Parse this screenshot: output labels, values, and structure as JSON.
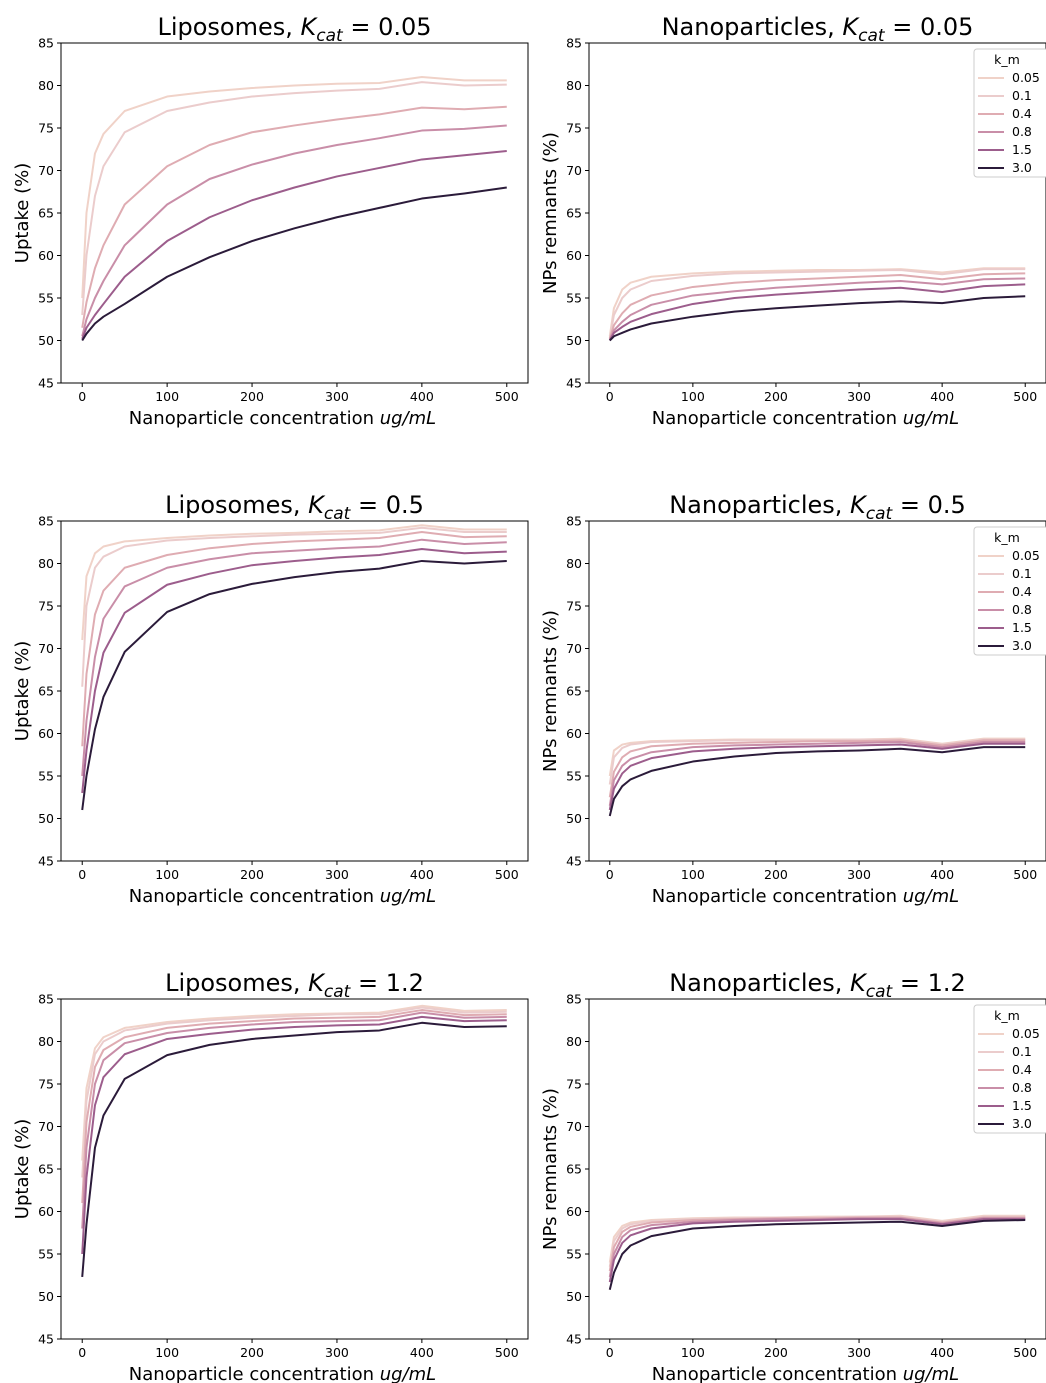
{
  "chart_data": [
    {
      "type": "line",
      "title_base": "Liposomes, ",
      "title_sym": "K",
      "title_sub": "cat",
      "title_rest": " = 0.05",
      "xlabel_base": "Nanoparticle concentration ",
      "xlabel_unit": "ug/mL",
      "ylabel": "Uptake (%)",
      "xlim": [
        -25,
        525
      ],
      "ylim": [
        45,
        85
      ],
      "xticks": [
        0,
        100,
        200,
        300,
        400,
        500
      ],
      "yticks": [
        45,
        50,
        55,
        60,
        65,
        70,
        75,
        80,
        85
      ],
      "grid": false,
      "x": [
        0,
        5,
        15,
        25,
        50,
        100,
        150,
        200,
        250,
        300,
        350,
        400,
        450,
        500
      ],
      "series": [
        {
          "name": "0.05",
          "values": [
            55.0,
            65.0,
            72.0,
            74.3,
            77.0,
            78.7,
            79.3,
            79.7,
            80.0,
            80.2,
            80.3,
            81.0,
            80.6,
            80.6
          ]
        },
        {
          "name": "0.1",
          "values": [
            53.0,
            60.0,
            67.0,
            70.5,
            74.5,
            77.0,
            78.0,
            78.7,
            79.1,
            79.4,
            79.6,
            80.4,
            80.0,
            80.1
          ]
        },
        {
          "name": "0.4",
          "values": [
            51.5,
            54.5,
            58.5,
            61.2,
            66.0,
            70.5,
            73.0,
            74.5,
            75.3,
            76.0,
            76.6,
            77.4,
            77.2,
            77.5
          ]
        },
        {
          "name": "0.8",
          "values": [
            50.5,
            52.5,
            55.0,
            57.0,
            61.2,
            66.0,
            69.0,
            70.7,
            72.0,
            73.0,
            73.8,
            74.7,
            74.9,
            75.3
          ]
        },
        {
          "name": "1.5",
          "values": [
            50.2,
            51.5,
            53.0,
            54.3,
            57.5,
            61.7,
            64.5,
            66.5,
            68.0,
            69.3,
            70.3,
            71.3,
            71.8,
            72.3
          ]
        },
        {
          "name": "3.0",
          "values": [
            50.0,
            50.8,
            52.0,
            52.8,
            54.3,
            57.5,
            59.8,
            61.7,
            63.2,
            64.5,
            65.6,
            66.7,
            67.3,
            68.0
          ]
        }
      ]
    },
    {
      "type": "line",
      "title_base": "Nanoparticles, ",
      "title_sym": "K",
      "title_sub": "cat",
      "title_rest": " = 0.05",
      "xlabel_base": "Nanoparticle concentration ",
      "xlabel_unit": "ug/mL",
      "ylabel": "NPs remnants (%)",
      "xlim": [
        -25,
        525
      ],
      "ylim": [
        45,
        85
      ],
      "xticks": [
        0,
        100,
        200,
        300,
        400,
        500
      ],
      "yticks": [
        45,
        50,
        55,
        60,
        65,
        70,
        75,
        80,
        85
      ],
      "grid": false,
      "legend": {
        "title": "k_m",
        "placement": "top-right"
      },
      "x": [
        0,
        5,
        15,
        25,
        50,
        100,
        150,
        200,
        250,
        300,
        350,
        400,
        450,
        500
      ],
      "series": [
        {
          "name": "0.05",
          "values": [
            50.5,
            53.8,
            56.0,
            56.8,
            57.5,
            57.9,
            58.1,
            58.2,
            58.3,
            58.3,
            58.4,
            58.0,
            58.5,
            58.5
          ]
        },
        {
          "name": "0.1",
          "values": [
            50.3,
            53.0,
            55.0,
            56.0,
            57.0,
            57.6,
            57.9,
            58.0,
            58.1,
            58.2,
            58.3,
            57.8,
            58.4,
            58.4
          ]
        },
        {
          "name": "0.4",
          "values": [
            50.2,
            51.8,
            53.2,
            54.2,
            55.3,
            56.3,
            56.8,
            57.1,
            57.3,
            57.5,
            57.7,
            57.2,
            57.8,
            57.9
          ]
        },
        {
          "name": "0.8",
          "values": [
            50.1,
            51.2,
            52.2,
            53.0,
            54.2,
            55.3,
            55.8,
            56.2,
            56.5,
            56.8,
            57.0,
            56.6,
            57.2,
            57.3
          ]
        },
        {
          "name": "1.5",
          "values": [
            50.0,
            50.9,
            51.6,
            52.2,
            53.1,
            54.3,
            55.0,
            55.4,
            55.7,
            56.0,
            56.2,
            55.7,
            56.4,
            56.6
          ]
        },
        {
          "name": "3.0",
          "values": [
            50.0,
            50.5,
            50.9,
            51.3,
            52.0,
            52.8,
            53.4,
            53.8,
            54.1,
            54.4,
            54.6,
            54.4,
            55.0,
            55.2
          ]
        }
      ]
    },
    {
      "type": "line",
      "title_base": "Liposomes, ",
      "title_sym": "K",
      "title_sub": "cat",
      "title_rest": " = 0.5",
      "xlabel_base": "Nanoparticle concentration ",
      "xlabel_unit": "ug/mL",
      "ylabel": "Uptake (%)",
      "xlim": [
        -25,
        525
      ],
      "ylim": [
        45,
        85
      ],
      "xticks": [
        0,
        100,
        200,
        300,
        400,
        500
      ],
      "yticks": [
        45,
        50,
        55,
        60,
        65,
        70,
        75,
        80,
        85
      ],
      "grid": false,
      "x": [
        0,
        5,
        15,
        25,
        50,
        100,
        150,
        200,
        250,
        300,
        350,
        400,
        450,
        500
      ],
      "series": [
        {
          "name": "0.05",
          "values": [
            71.0,
            78.5,
            81.2,
            82.0,
            82.6,
            83.0,
            83.3,
            83.5,
            83.6,
            83.8,
            83.9,
            84.5,
            84.0,
            84.0
          ]
        },
        {
          "name": "0.1",
          "values": [
            65.5,
            75.0,
            79.5,
            80.8,
            82.0,
            82.7,
            83.0,
            83.2,
            83.4,
            83.5,
            83.6,
            84.2,
            83.7,
            83.7
          ]
        },
        {
          "name": "0.4",
          "values": [
            58.5,
            67.0,
            74.0,
            76.8,
            79.5,
            81.0,
            81.8,
            82.3,
            82.6,
            82.8,
            83.0,
            83.7,
            83.1,
            83.2
          ]
        },
        {
          "name": "0.8",
          "values": [
            55.0,
            61.5,
            69.0,
            73.5,
            77.3,
            79.5,
            80.5,
            81.2,
            81.5,
            81.8,
            82.0,
            82.8,
            82.3,
            82.5
          ]
        },
        {
          "name": "1.5",
          "values": [
            53.0,
            58.0,
            65.0,
            69.5,
            74.2,
            77.5,
            78.8,
            79.8,
            80.3,
            80.7,
            81.0,
            81.7,
            81.2,
            81.4
          ]
        },
        {
          "name": "3.0",
          "values": [
            51.0,
            55.0,
            60.5,
            64.3,
            69.6,
            74.3,
            76.4,
            77.6,
            78.4,
            79.0,
            79.4,
            80.3,
            80.0,
            80.3
          ]
        }
      ]
    },
    {
      "type": "line",
      "title_base": "Nanoparticles, ",
      "title_sym": "K",
      "title_sub": "cat",
      "title_rest": " = 0.5",
      "xlabel_base": "Nanoparticle concentration ",
      "xlabel_unit": "ug/mL",
      "ylabel": "NPs remnants (%)",
      "xlim": [
        -25,
        525
      ],
      "ylim": [
        45,
        85
      ],
      "xticks": [
        0,
        100,
        200,
        300,
        400,
        500
      ],
      "yticks": [
        45,
        50,
        55,
        60,
        65,
        70,
        75,
        80,
        85
      ],
      "grid": false,
      "legend": {
        "title": "k_m",
        "placement": "top-right"
      },
      "x": [
        0,
        5,
        15,
        25,
        50,
        100,
        150,
        200,
        250,
        300,
        350,
        400,
        450,
        500
      ],
      "series": [
        {
          "name": "0.05",
          "values": [
            55.0,
            58.0,
            58.7,
            58.9,
            59.1,
            59.2,
            59.3,
            59.3,
            59.3,
            59.3,
            59.4,
            58.8,
            59.4,
            59.4
          ]
        },
        {
          "name": "0.1",
          "values": [
            54.0,
            57.2,
            58.3,
            58.7,
            59.0,
            59.1,
            59.2,
            59.2,
            59.2,
            59.3,
            59.3,
            58.7,
            59.3,
            59.3
          ]
        },
        {
          "name": "0.4",
          "values": [
            52.5,
            55.5,
            57.2,
            57.9,
            58.5,
            58.8,
            58.9,
            59.0,
            59.1,
            59.1,
            59.2,
            58.6,
            59.2,
            59.2
          ]
        },
        {
          "name": "0.8",
          "values": [
            51.5,
            54.5,
            56.2,
            57.0,
            57.8,
            58.4,
            58.6,
            58.7,
            58.8,
            58.9,
            59.0,
            58.4,
            59.0,
            59.0
          ]
        },
        {
          "name": "1.5",
          "values": [
            51.0,
            53.5,
            55.3,
            56.2,
            57.1,
            57.9,
            58.2,
            58.4,
            58.5,
            58.6,
            58.7,
            58.2,
            58.8,
            58.8
          ]
        },
        {
          "name": "3.0",
          "values": [
            50.3,
            52.3,
            53.8,
            54.6,
            55.6,
            56.7,
            57.3,
            57.7,
            57.9,
            58.0,
            58.2,
            57.8,
            58.4,
            58.4
          ]
        }
      ]
    },
    {
      "type": "line",
      "title_base": "Liposomes, ",
      "title_sym": "K",
      "title_sub": "cat",
      "title_rest": " = 1.2",
      "xlabel_base": "Nanoparticle concentration ",
      "xlabel_unit": "ug/mL",
      "ylabel": "Uptake (%)",
      "xlim": [
        -25,
        525
      ],
      "ylim": [
        45,
        85
      ],
      "xticks": [
        0,
        100,
        200,
        300,
        400,
        500
      ],
      "yticks": [
        45,
        50,
        55,
        60,
        65,
        70,
        75,
        80,
        85
      ],
      "grid": false,
      "x": [
        0,
        5,
        15,
        25,
        50,
        100,
        150,
        200,
        250,
        300,
        350,
        400,
        450,
        500
      ],
      "series": [
        {
          "name": "0.05",
          "values": [
            66.0,
            74.5,
            79.2,
            80.5,
            81.6,
            82.3,
            82.7,
            83.0,
            83.2,
            83.3,
            83.4,
            84.2,
            83.6,
            83.7
          ]
        },
        {
          "name": "0.1",
          "values": [
            64.0,
            73.0,
            78.5,
            80.0,
            81.3,
            82.1,
            82.5,
            82.8,
            83.0,
            83.2,
            83.2,
            84.0,
            83.4,
            83.5
          ]
        },
        {
          "name": "0.4",
          "values": [
            61.0,
            70.5,
            77.0,
            79.0,
            80.5,
            81.6,
            82.1,
            82.4,
            82.7,
            82.8,
            82.9,
            83.7,
            83.1,
            83.2
          ]
        },
        {
          "name": "0.8",
          "values": [
            58.0,
            67.5,
            75.0,
            77.8,
            79.8,
            81.0,
            81.6,
            82.0,
            82.3,
            82.4,
            82.5,
            83.4,
            82.8,
            82.9
          ]
        },
        {
          "name": "1.5",
          "values": [
            55.0,
            64.0,
            72.5,
            75.8,
            78.5,
            80.3,
            80.9,
            81.4,
            81.7,
            81.9,
            82.0,
            82.9,
            82.4,
            82.5
          ]
        },
        {
          "name": "3.0",
          "values": [
            52.3,
            58.5,
            67.5,
            71.3,
            75.6,
            78.4,
            79.6,
            80.3,
            80.7,
            81.1,
            81.3,
            82.2,
            81.7,
            81.8
          ]
        }
      ]
    },
    {
      "type": "line",
      "title_base": "Nanoparticles, ",
      "title_sym": "K",
      "title_sub": "cat",
      "title_rest": " = 1.2",
      "xlabel_base": "Nanoparticle concentration ",
      "xlabel_unit": "ug/mL",
      "ylabel": "NPs remnants (%)",
      "xlim": [
        -25,
        525
      ],
      "ylim": [
        45,
        85
      ],
      "xticks": [
        0,
        100,
        200,
        300,
        400,
        500
      ],
      "yticks": [
        45,
        50,
        55,
        60,
        65,
        70,
        75,
        80,
        85
      ],
      "grid": false,
      "legend": {
        "title": "k_m",
        "placement": "top-right"
      },
      "x": [
        0,
        5,
        15,
        25,
        50,
        100,
        150,
        200,
        250,
        300,
        350,
        400,
        450,
        500
      ],
      "series": [
        {
          "name": "0.05",
          "values": [
            54.0,
            57.0,
            58.3,
            58.7,
            59.0,
            59.2,
            59.3,
            59.3,
            59.4,
            59.4,
            59.5,
            58.9,
            59.5,
            59.5
          ]
        },
        {
          "name": "0.1",
          "values": [
            53.5,
            56.5,
            58.0,
            58.5,
            58.9,
            59.1,
            59.2,
            59.3,
            59.3,
            59.4,
            59.4,
            58.8,
            59.4,
            59.4
          ]
        },
        {
          "name": "0.4",
          "values": [
            53.0,
            55.8,
            57.6,
            58.2,
            58.7,
            59.0,
            59.1,
            59.2,
            59.2,
            59.3,
            59.3,
            58.7,
            59.3,
            59.3
          ]
        },
        {
          "name": "0.8",
          "values": [
            52.3,
            55.0,
            57.0,
            57.8,
            58.4,
            58.8,
            59.0,
            59.1,
            59.1,
            59.2,
            59.2,
            58.6,
            59.2,
            59.2
          ]
        },
        {
          "name": "1.5",
          "values": [
            51.7,
            54.3,
            56.3,
            57.2,
            58.0,
            58.6,
            58.8,
            58.9,
            59.0,
            59.1,
            59.1,
            58.5,
            59.1,
            59.1
          ]
        },
        {
          "name": "3.0",
          "values": [
            50.8,
            52.8,
            55.0,
            56.0,
            57.1,
            58.0,
            58.3,
            58.5,
            58.6,
            58.7,
            58.8,
            58.3,
            58.9,
            59.0
          ]
        }
      ]
    }
  ],
  "colors": {
    "0.05": "#f0d2c8",
    "0.1": "#ebcccc",
    "0.4": "#dfacb2",
    "0.8": "#c98ea8",
    "1.5": "#9c5d8c",
    "3.0": "#2b1b3a"
  }
}
